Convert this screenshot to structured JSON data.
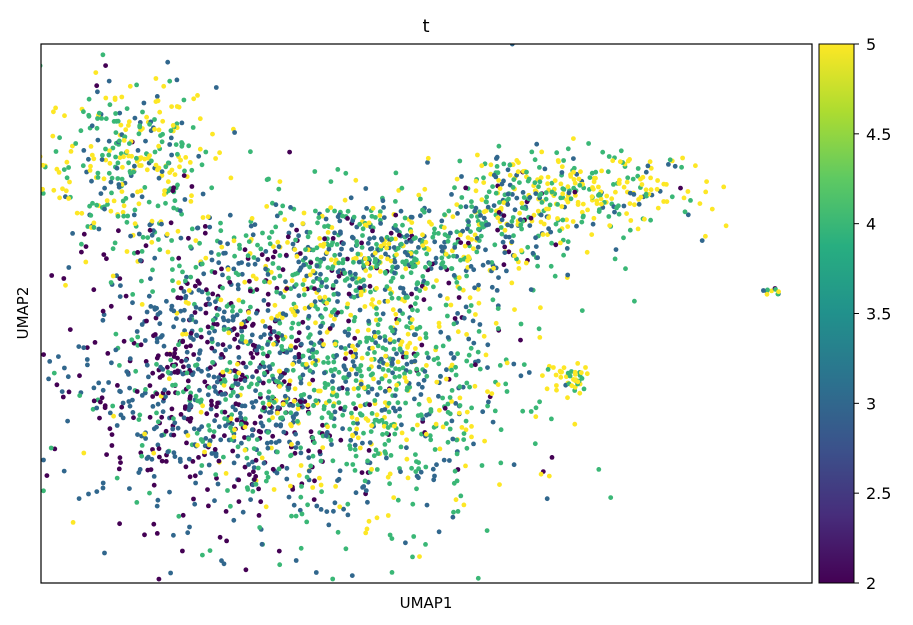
{
  "chart_data": {
    "type": "scatter",
    "title": "t",
    "xlabel": "UMAP1",
    "ylabel": "UMAP2",
    "xticks": false,
    "yticks": false,
    "grid": false,
    "legend": "none",
    "colorbar": {
      "colormap": "viridis",
      "range": [
        2,
        5
      ],
      "ticks": [
        "5",
        "4.5",
        "4",
        "3.5",
        "3",
        "2.5",
        "2"
      ],
      "tick_values": [
        5,
        4.5,
        4,
        3.5,
        3,
        2.5,
        2
      ],
      "position": "right"
    },
    "xlim": [
      0,
      100
    ],
    "ylim": [
      0,
      100
    ],
    "point_count": 3400,
    "regions": [
      {
        "name": "upper-left lobe",
        "x": 11.5,
        "y": 78,
        "sx": 5.5,
        "sy": 8,
        "weight": 0.1,
        "t_mean": 4.3
      },
      {
        "name": "upper-right lobe",
        "x": 71,
        "y": 73,
        "sx": 7.5,
        "sy": 4,
        "weight": 0.07,
        "t_mean": 4.4
      },
      {
        "name": "upper-right arm",
        "x": 61,
        "y": 70,
        "sx": 4,
        "sy": 5,
        "weight": 0.05,
        "t_mean": 4.0
      },
      {
        "name": "main body left",
        "x": 22,
        "y": 37,
        "sx": 8.5,
        "sy": 13,
        "weight": 0.26,
        "t_mean": 2.7
      },
      {
        "name": "main body center",
        "x": 42,
        "y": 40,
        "sx": 10,
        "sy": 14,
        "weight": 0.33,
        "t_mean": 3.9
      },
      {
        "name": "main body top",
        "x": 43,
        "y": 62,
        "sx": 12,
        "sy": 4.5,
        "weight": 0.14,
        "t_mean": 3.7
      },
      {
        "name": "small cluster right",
        "x": 68.5,
        "y": 38,
        "sx": 1.5,
        "sy": 1.6,
        "weight": 0.012,
        "t_mean": 4.9
      },
      {
        "name": "isolated cluster far right",
        "x": 94.8,
        "y": 54,
        "sx": 0.6,
        "sy": 0.4,
        "weight": 0.003,
        "t_mean": 3.8
      }
    ]
  }
}
